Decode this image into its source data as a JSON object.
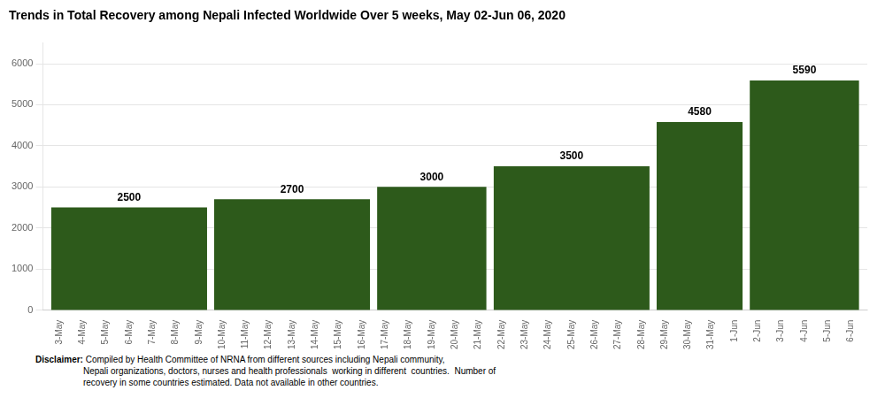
{
  "chart_data": {
    "type": "bar",
    "title": "Trends in Total Recovery among Nepali Infected Worldwide Over 5 weeks, May 02-Jun 06, 2020",
    "categories": [
      "3-May",
      "4-May",
      "5-May",
      "6-May",
      "7-May",
      "8-May",
      "9-May",
      "10-May",
      "11-May",
      "12-May",
      "13-May",
      "14-May",
      "15-May",
      "16-May",
      "17-May",
      "18-May",
      "19-May",
      "20-May",
      "21-May",
      "22-May",
      "23-May",
      "24-May",
      "25-May",
      "26-May",
      "27-May",
      "28-May",
      "29-May",
      "30-May",
      "31-May",
      "1-Jun",
      "2-Jun",
      "3-Jun",
      "4-Jun",
      "5-Jun",
      "6-Jun"
    ],
    "groups": [
      {
        "first": "3-May",
        "last": "9-May",
        "value": 2500
      },
      {
        "first": "10-May",
        "last": "16-May",
        "value": 2700
      },
      {
        "first": "17-May",
        "last": "21-May",
        "value": 3000
      },
      {
        "first": "22-May",
        "last": "28-May",
        "value": 3500
      },
      {
        "first": "29-May",
        "last": "1-Jun",
        "value": 4580
      },
      {
        "first": "2-Jun",
        "last": "6-Jun",
        "value": 5590
      }
    ],
    "color": "#2d5a1b",
    "data_labels": true,
    "ylim": [
      0,
      6500
    ],
    "yticks": [
      0,
      1000,
      2000,
      3000,
      4000,
      5000,
      6000
    ],
    "grid": true,
    "disclaimer": {
      "heading": "Disclaimer:",
      "text": " Compiled by Health Committee of NRNA from different sources including Nepali community,\nNepali organizations, doctors, nurses and health professionals  working in different  countries.  Number of\nrecovery in some countries estimated. Data not available in other countries."
    }
  }
}
